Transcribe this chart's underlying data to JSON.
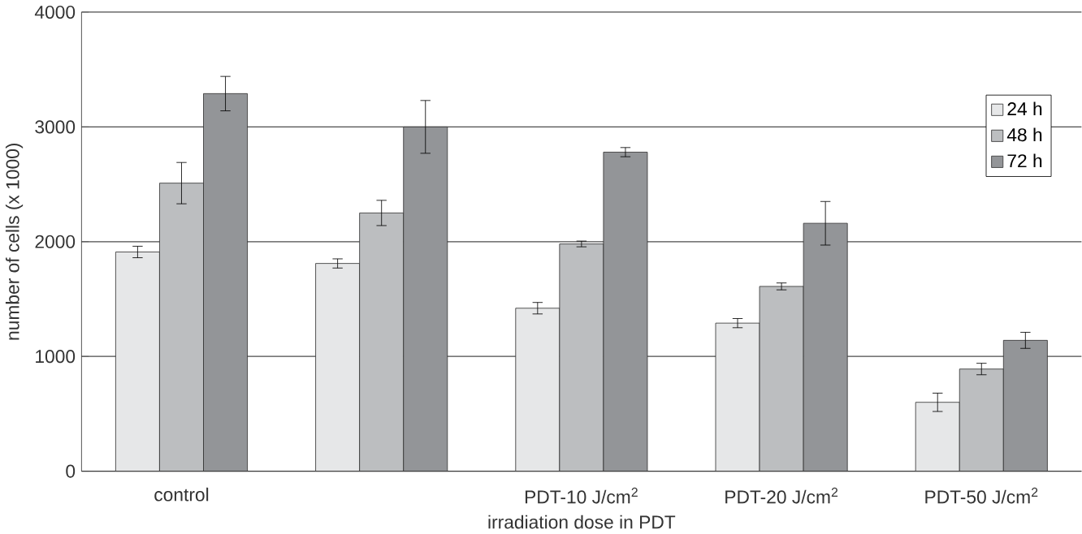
{
  "chart_data": {
    "type": "bar",
    "xlabel": "irradiation dose in PDT",
    "ylabel": "number of cells (x 1000)",
    "categories": [
      "control",
      null,
      "PDT-10 J/cm$^{2}$",
      "PDT-20 J/cm$^{2}$",
      "PDT-50 J/cm$^{2}$"
    ],
    "series": [
      {
        "name": "24 h",
        "color": "#e6e7e8",
        "values": [
          1910,
          1810,
          1420,
          1290,
          600
        ],
        "errors": [
          50,
          40,
          50,
          40,
          80
        ]
      },
      {
        "name": "48 h",
        "color": "#bcbec0",
        "values": [
          2510,
          2250,
          1980,
          1610,
          890
        ],
        "errors": [
          180,
          110,
          25,
          30,
          50
        ]
      },
      {
        "name": "72 h",
        "color": "#939598",
        "values": [
          3290,
          3000,
          2780,
          2160,
          1140
        ],
        "errors": [
          150,
          230,
          40,
          190,
          70
        ]
      }
    ],
    "ylim": [
      0,
      4000
    ],
    "yticks": [
      0,
      1000,
      2000,
      3000,
      4000
    ],
    "grid": "y",
    "legend": "top right"
  }
}
